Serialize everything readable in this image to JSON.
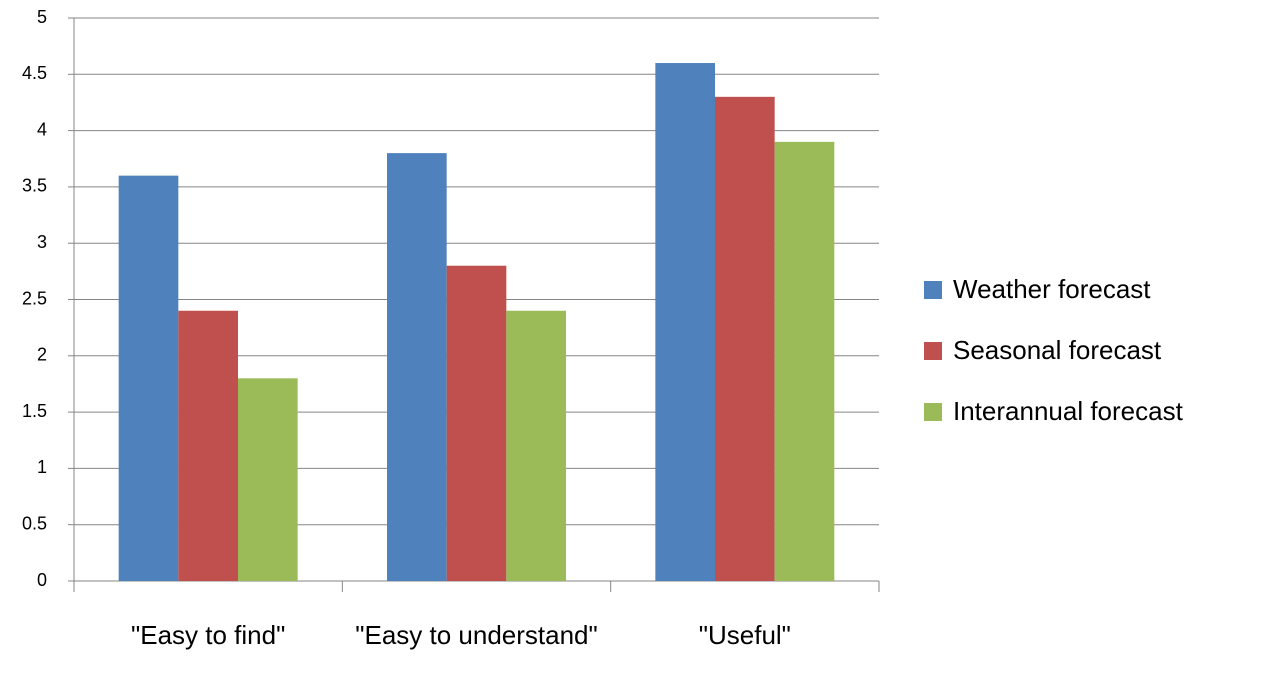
{
  "chart_data": {
    "type": "bar",
    "categories": [
      "\"Easy to find\"",
      "\"Easy to understand\"",
      "\"Useful\""
    ],
    "series": [
      {
        "name": "Weather forecast",
        "color": "#4f81bd",
        "values": [
          3.6,
          3.8,
          4.6
        ]
      },
      {
        "name": "Seasonal forecast",
        "color": "#c0504d",
        "values": [
          2.4,
          2.8,
          4.3
        ]
      },
      {
        "name": "Interannual forecast",
        "color": "#9bbb59",
        "values": [
          1.8,
          2.4,
          3.9
        ]
      }
    ],
    "ylim": [
      0,
      5
    ],
    "yticks": [
      0,
      0.5,
      1,
      1.5,
      2,
      2.5,
      3,
      3.5,
      4,
      4.5,
      5
    ],
    "grid": true,
    "legend": "right"
  }
}
